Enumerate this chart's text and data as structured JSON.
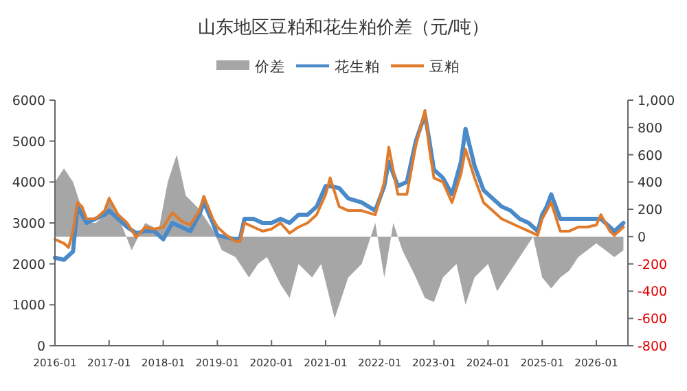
{
  "chart_data": {
    "type": "line",
    "title": "山东地区豆粕和花生粕价差（元/吨）",
    "legend": "top",
    "grid": false,
    "xlim": [
      "2016-01",
      "2026-08"
    ],
    "xticks": [
      {
        "value": "2016-01",
        "label": "2016-01"
      },
      {
        "value": "2017-01",
        "label": "2017-01"
      },
      {
        "value": "2018-01",
        "label": "2018-01"
      },
      {
        "value": "2019-01",
        "label": "2019-01"
      },
      {
        "value": "2020-01",
        "label": "2020-01"
      },
      {
        "value": "2021-01",
        "label": "2021-01"
      },
      {
        "value": "2022-01",
        "label": "2022-01"
      },
      {
        "value": "2023-01",
        "label": "2023-01"
      },
      {
        "value": "2024-01",
        "label": "2024-01"
      },
      {
        "value": "2025-01",
        "label": "2025-01"
      },
      {
        "value": "2026-01",
        "label": "2026-01"
      }
    ],
    "ylim": [
      0,
      6000
    ],
    "yticks": [
      0,
      1000,
      2000,
      3000,
      4000,
      5000,
      6000
    ],
    "y2lim": [
      -800,
      1000
    ],
    "y2ticks": [
      -800,
      -600,
      -400,
      -200,
      0,
      200,
      400,
      600,
      800,
      {
        "value": 1000,
        "label": "1,000"
      }
    ],
    "series": [
      {
        "name": "价差",
        "type": "area",
        "axis": "y2",
        "color": "#a6a6a6",
        "x": [
          "2016-01",
          "2016-03",
          "2016-05",
          "2016-06",
          "2016-08",
          "2016-10",
          "2016-12",
          "2017-01",
          "2017-03",
          "2017-06",
          "2017-09",
          "2017-12",
          "2018-02",
          "2018-04",
          "2018-06",
          "2018-09",
          "2018-12",
          "2019-02",
          "2019-05",
          "2019-08",
          "2019-10",
          "2019-12",
          "2020-03",
          "2020-05",
          "2020-07",
          "2020-10",
          "2020-12",
          "2021-03",
          "2021-04",
          "2021-06",
          "2021-09",
          "2021-12",
          "2022-02",
          "2022-04",
          "2022-06",
          "2022-09",
          "2022-11",
          "2023-01",
          "2023-03",
          "2023-06",
          "2023-08",
          "2023-10",
          "2024-01",
          "2024-03",
          "2024-05",
          "2024-07",
          "2024-09",
          "2024-11",
          "2025-01",
          "2025-03",
          "2025-05",
          "2025-07",
          "2025-09",
          "2025-11",
          "2026-01",
          "2026-03",
          "2026-05",
          "2026-07"
        ],
        "values": [
          400,
          500,
          400,
          300,
          100,
          100,
          150,
          300,
          150,
          -100,
          100,
          50,
          400,
          600,
          300,
          200,
          50,
          -100,
          -150,
          -300,
          -200,
          -150,
          -350,
          -450,
          -200,
          -300,
          -200,
          -600,
          -500,
          -300,
          -200,
          100,
          -300,
          100,
          -100,
          -300,
          -450,
          -480,
          -300,
          -200,
          -500,
          -300,
          -200,
          -400,
          -300,
          -200,
          -100,
          0,
          -300,
          -380,
          -300,
          -250,
          -150,
          -100,
          -50,
          -100,
          -150,
          -100
        ]
      },
      {
        "name": "花生粕",
        "color": "#4a8ac9",
        "x": [
          "2016-01",
          "2016-03",
          "2016-05",
          "2016-06",
          "2016-08",
          "2016-10",
          "2016-12",
          "2017-01",
          "2017-03",
          "2017-05",
          "2017-07",
          "2017-09",
          "2017-11",
          "2018-01",
          "2018-03",
          "2018-05",
          "2018-07",
          "2018-09",
          "2018-10",
          "2018-12",
          "2019-01",
          "2019-03",
          "2019-05",
          "2019-06",
          "2019-07",
          "2019-09",
          "2019-11",
          "2020-01",
          "2020-03",
          "2020-05",
          "2020-07",
          "2020-09",
          "2020-11",
          "2021-01",
          "2021-02",
          "2021-04",
          "2021-06",
          "2021-09",
          "2021-12",
          "2022-02",
          "2022-03",
          "2022-05",
          "2022-07",
          "2022-09",
          "2022-11",
          "2022-12",
          "2023-01",
          "2023-03",
          "2023-05",
          "2023-07",
          "2023-08",
          "2023-10",
          "2023-12",
          "2024-02",
          "2024-04",
          "2024-06",
          "2024-08",
          "2024-10",
          "2024-12",
          "2025-01",
          "2025-02",
          "2025-03",
          "2025-05",
          "2025-07",
          "2025-09",
          "2025-11",
          "2026-01",
          "2026-02",
          "2026-04",
          "2026-05",
          "2026-07"
        ],
        "values": [
          2150,
          2100,
          2300,
          3400,
          3000,
          3100,
          3200,
          3300,
          3100,
          2900,
          2750,
          2800,
          2800,
          2600,
          3000,
          2900,
          2800,
          3200,
          3500,
          3000,
          2700,
          2650,
          2600,
          2600,
          3100,
          3100,
          3000,
          3000,
          3100,
          3000,
          3200,
          3200,
          3400,
          3900,
          3900,
          3850,
          3600,
          3500,
          3300,
          3900,
          4500,
          3900,
          4000,
          5000,
          5650,
          5000,
          4300,
          4100,
          3700,
          4500,
          5300,
          4400,
          3800,
          3600,
          3400,
          3300,
          3100,
          3000,
          2800,
          3200,
          3400,
          3700,
          3100,
          3100,
          3100,
          3100,
          3100,
          3100,
          2900,
          2800,
          3000
        ]
      },
      {
        "name": "豆粕",
        "color": "#e07b2c",
        "x": [
          "2016-01",
          "2016-03",
          "2016-04",
          "2016-05",
          "2016-06",
          "2016-07",
          "2016-08",
          "2016-10",
          "2016-12",
          "2017-01",
          "2017-03",
          "2017-05",
          "2017-07",
          "2017-09",
          "2017-11",
          "2018-01",
          "2018-03",
          "2018-05",
          "2018-07",
          "2018-09",
          "2018-10",
          "2018-12",
          "2019-01",
          "2019-03",
          "2019-05",
          "2019-06",
          "2019-07",
          "2019-09",
          "2019-11",
          "2020-01",
          "2020-03",
          "2020-05",
          "2020-07",
          "2020-09",
          "2020-11",
          "2021-01",
          "2021-02",
          "2021-04",
          "2021-06",
          "2021-09",
          "2021-12",
          "2022-02",
          "2022-03",
          "2022-05",
          "2022-07",
          "2022-09",
          "2022-11",
          "2022-12",
          "2023-01",
          "2023-03",
          "2023-05",
          "2023-07",
          "2023-08",
          "2023-10",
          "2023-12",
          "2024-02",
          "2024-04",
          "2024-06",
          "2024-08",
          "2024-10",
          "2024-12",
          "2025-01",
          "2025-02",
          "2025-03",
          "2025-05",
          "2025-07",
          "2025-09",
          "2025-11",
          "2026-01",
          "2026-02",
          "2026-04",
          "2026-05",
          "2026-07"
        ],
        "values": [
          2600,
          2500,
          2400,
          2800,
          3500,
          3400,
          3100,
          3100,
          3300,
          3600,
          3200,
          3000,
          2650,
          2900,
          2850,
          2900,
          3250,
          3050,
          2950,
          3300,
          3650,
          3100,
          2900,
          2700,
          2550,
          2550,
          3000,
          2900,
          2800,
          2850,
          3000,
          2750,
          2900,
          3000,
          3200,
          3700,
          4100,
          3400,
          3300,
          3300,
          3200,
          4000,
          4850,
          3700,
          3700,
          4900,
          5750,
          4800,
          4100,
          4000,
          3500,
          4200,
          4800,
          4100,
          3500,
          3300,
          3100,
          3000,
          2900,
          2800,
          2700,
          3100,
          3300,
          3500,
          2800,
          2800,
          2900,
          2900,
          2950,
          3200,
          2800,
          2700,
          2900
        ]
      }
    ]
  }
}
